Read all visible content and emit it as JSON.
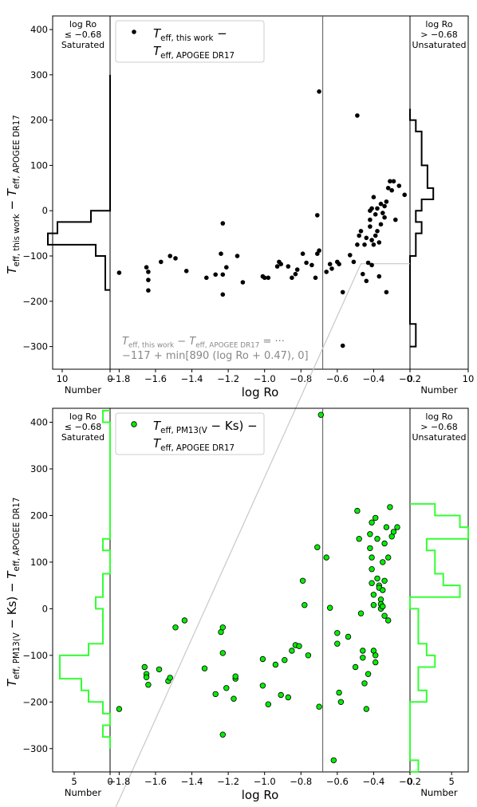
{
  "chart_data": [
    {
      "type": "scatter",
      "color": "#000000",
      "edgecolor": "#000000",
      "ylabel": "T_eff, this work − T_eff, APOGEE DR17",
      "xlabel": "log Ro",
      "legend": {
        "line1": "T_eff, this work −",
        "line2": "T_eff, APOGEE DR17",
        "placement": "top-left"
      },
      "xlim": [
        -1.85,
        -0.2
      ],
      "ylim": [
        -350,
        430
      ],
      "xticks": [
        "−1.8",
        "−1.6",
        "−1.4",
        "−1.2",
        "−1.0",
        "−0.8",
        "−0.6",
        "−0.4",
        "−0.2"
      ],
      "yticks": [
        "−300",
        "−200",
        "−100",
        "0",
        "100",
        "200",
        "300",
        "400"
      ],
      "divider_x": -0.68,
      "left_panel": {
        "title": [
          "log Ro",
          "≤ −0.68",
          "Saturated"
        ],
        "xlabel": "Number",
        "ticks": [
          "10",
          "0"
        ],
        "xmax": 12
      },
      "right_panel": {
        "title": [
          "log Ro",
          "> −0.68",
          "Unsaturated"
        ],
        "xlabel": "Number",
        "ticks": [
          "0",
          "10"
        ],
        "xmax": 10
      },
      "fit": {
        "line1": "T_eff, this work − T_eff, APOGEE DR17 = ···",
        "line2": "−117 + min[890 (log Ro + 0.47), 0]",
        "a": -117,
        "b": 890,
        "c": 0.47
      },
      "hist_left": {
        "bin_edges": [
          -175,
          -150,
          -125,
          -100,
          -75,
          -50,
          -25,
          0,
          25,
          50,
          75,
          100,
          125,
          150,
          175,
          200,
          225,
          250,
          275,
          300
        ],
        "counts": [
          1,
          1,
          1,
          3,
          13,
          11,
          4,
          0,
          0,
          0,
          0,
          0,
          0,
          0,
          0,
          0,
          0,
          0,
          0
        ]
      },
      "hist_right": {
        "bin_edges": [
          -300,
          -275,
          -250,
          -225,
          -200,
          -175,
          -150,
          -125,
          -100,
          -75,
          -50,
          -25,
          0,
          25,
          50,
          75,
          100,
          125,
          150,
          175,
          200,
          225
        ],
        "counts": [
          1,
          1,
          0,
          0,
          0,
          0,
          0,
          0,
          1,
          1,
          2,
          1,
          2,
          4,
          3,
          3,
          2,
          2,
          2,
          1,
          0
        ]
      },
      "points": [
        [
          -1.8,
          -137
        ],
        [
          -1.65,
          -125
        ],
        [
          -1.64,
          -135
        ],
        [
          -1.64,
          -153
        ],
        [
          -1.64,
          -176
        ],
        [
          -1.57,
          -113
        ],
        [
          -1.52,
          -100
        ],
        [
          -1.49,
          -105
        ],
        [
          -1.43,
          -133
        ],
        [
          -1.32,
          -148
        ],
        [
          -1.27,
          -141
        ],
        [
          -1.24,
          -95
        ],
        [
          -1.23,
          -28
        ],
        [
          -1.23,
          -141
        ],
        [
          -1.23,
          -185
        ],
        [
          -1.21,
          -125
        ],
        [
          -1.15,
          -100
        ],
        [
          -1.12,
          -158
        ],
        [
          -1.0,
          -148
        ],
        [
          -1.01,
          -145
        ],
        [
          -0.98,
          -148
        ],
        [
          -0.93,
          -123
        ],
        [
          -0.92,
          -113
        ],
        [
          -0.91,
          -118
        ],
        [
          -0.87,
          -123
        ],
        [
          -0.85,
          -148
        ],
        [
          -0.83,
          -140
        ],
        [
          -0.82,
          -130
        ],
        [
          -0.79,
          -95
        ],
        [
          -0.77,
          -115
        ],
        [
          -0.74,
          -120
        ],
        [
          -0.72,
          -148
        ],
        [
          -0.71,
          -10
        ],
        [
          -0.71,
          -95
        ],
        [
          -0.7,
          -88
        ],
        [
          -0.7,
          263
        ],
        [
          -0.66,
          -135
        ],
        [
          -0.64,
          -118
        ],
        [
          -0.63,
          -128
        ],
        [
          -0.6,
          -113
        ],
        [
          -0.59,
          -118
        ],
        [
          -0.57,
          -180
        ],
        [
          -0.57,
          -298
        ],
        [
          -0.53,
          -98
        ],
        [
          -0.51,
          -113
        ],
        [
          -0.49,
          -75
        ],
        [
          -0.49,
          210
        ],
        [
          -0.48,
          -55
        ],
        [
          -0.47,
          -45
        ],
        [
          -0.46,
          -140
        ],
        [
          -0.45,
          -75
        ],
        [
          -0.44,
          -60
        ],
        [
          -0.44,
          -155
        ],
        [
          -0.43,
          -115
        ],
        [
          -0.42,
          -35
        ],
        [
          -0.42,
          -20
        ],
        [
          -0.42,
          0
        ],
        [
          -0.41,
          5
        ],
        [
          -0.4,
          30
        ],
        [
          -0.41,
          -65
        ],
        [
          -0.41,
          -120
        ],
        [
          -0.4,
          -75
        ],
        [
          -0.39,
          -55
        ],
        [
          -0.38,
          -45
        ],
        [
          -0.37,
          -70
        ],
        [
          -0.37,
          -145
        ],
        [
          -0.36,
          -30
        ],
        [
          -0.36,
          15
        ],
        [
          -0.35,
          -5
        ],
        [
          -0.34,
          -15
        ],
        [
          -0.34,
          10
        ],
        [
          -0.33,
          20
        ],
        [
          -0.33,
          -180
        ],
        [
          -0.32,
          50
        ],
        [
          -0.31,
          65
        ],
        [
          -0.3,
          45
        ],
        [
          -0.29,
          65
        ],
        [
          -0.28,
          -20
        ],
        [
          -0.26,
          55
        ],
        [
          -0.23,
          35
        ],
        [
          -0.38,
          5
        ],
        [
          -0.39,
          -8
        ]
      ]
    },
    {
      "type": "scatter",
      "color": "#00ee00",
      "edgecolor": "#000000",
      "ylabel": "T_eff, PM13(V − Ks) − T_eff, APOGEE DR17",
      "xlabel": "log Ro",
      "legend": {
        "line1": "T_eff, PM13(V − Ks) −",
        "line2": "T_eff, APOGEE DR17",
        "placement": "top-left"
      },
      "xlim": [
        -1.85,
        -0.2
      ],
      "ylim": [
        -350,
        430
      ],
      "xticks": [
        "−1.8",
        "−1.6",
        "−1.4",
        "−1.2",
        "−1.0",
        "−0.8",
        "−0.6",
        "−0.4",
        "−0.2"
      ],
      "yticks": [
        "−300",
        "−200",
        "−100",
        "0",
        "100",
        "200",
        "300",
        "400"
      ],
      "divider_x": -0.68,
      "left_panel": {
        "title": [
          "log Ro",
          "≤ −0.68",
          "Saturated"
        ],
        "xlabel": "Number",
        "ticks": [
          "5",
          "0"
        ],
        "xmax": 8
      },
      "right_panel": {
        "title": [
          "log Ro",
          "> −0.68",
          "Unsaturated"
        ],
        "xlabel": "Number",
        "ticks": [
          "0",
          "5"
        ],
        "xmax": 7
      },
      "hist_left": {
        "bin_edges": [
          -300,
          -275,
          -250,
          -225,
          -200,
          -175,
          -150,
          -125,
          -100,
          -75,
          -50,
          -25,
          0,
          25,
          50,
          75,
          100,
          125,
          150,
          175,
          200,
          225,
          250,
          275,
          300,
          325,
          350,
          375,
          400,
          425
        ],
        "counts": [
          0,
          1,
          0,
          1,
          3,
          4,
          7,
          7,
          3,
          1,
          1,
          1,
          2,
          1,
          1,
          0,
          0,
          1,
          0,
          0,
          0,
          0,
          0,
          0,
          0,
          0,
          0,
          0,
          1
        ]
      },
      "hist_right": {
        "bin_edges": [
          -350,
          -325,
          -300,
          -275,
          -250,
          -225,
          -200,
          -175,
          -150,
          -125,
          -100,
          -75,
          -50,
          -25,
          0,
          25,
          50,
          75,
          100,
          125,
          150,
          175,
          200,
          225
        ],
        "counts": [
          1,
          0,
          0,
          0,
          0,
          0,
          2,
          1,
          1,
          3,
          2,
          1,
          1,
          1,
          0,
          6,
          4,
          3,
          3,
          2,
          7,
          6,
          3
        ]
      },
      "points": [
        [
          -1.8,
          -215
        ],
        [
          -1.66,
          -125
        ],
        [
          -1.65,
          -140
        ],
        [
          -1.65,
          -147
        ],
        [
          -1.64,
          -163
        ],
        [
          -1.58,
          -130
        ],
        [
          -1.53,
          -155
        ],
        [
          -1.52,
          -148
        ],
        [
          -1.49,
          -40
        ],
        [
          -1.44,
          -25
        ],
        [
          -1.33,
          -128
        ],
        [
          -1.27,
          -183
        ],
        [
          -1.24,
          -50
        ],
        [
          -1.23,
          -40
        ],
        [
          -1.23,
          -95
        ],
        [
          -1.23,
          -270
        ],
        [
          -1.21,
          -170
        ],
        [
          -1.17,
          -193
        ],
        [
          -1.16,
          -150
        ],
        [
          -1.16,
          -145
        ],
        [
          -1.01,
          -108
        ],
        [
          -1.01,
          -165
        ],
        [
          -0.98,
          -205
        ],
        [
          -0.94,
          -120
        ],
        [
          -0.91,
          -185
        ],
        [
          -0.89,
          -110
        ],
        [
          -0.87,
          -190
        ],
        [
          -0.85,
          -90
        ],
        [
          -0.83,
          -78
        ],
        [
          -0.81,
          -80
        ],
        [
          -0.79,
          60
        ],
        [
          -0.78,
          8
        ],
        [
          -0.76,
          -100
        ],
        [
          -0.71,
          132
        ],
        [
          -0.7,
          -210
        ],
        [
          -0.69,
          416
        ],
        [
          -0.66,
          110
        ],
        [
          -0.64,
          2
        ],
        [
          -0.62,
          -325
        ],
        [
          -0.6,
          -52
        ],
        [
          -0.6,
          -75
        ],
        [
          -0.59,
          -180
        ],
        [
          -0.58,
          -200
        ],
        [
          -0.54,
          -60
        ],
        [
          -0.5,
          -125
        ],
        [
          -0.49,
          210
        ],
        [
          -0.48,
          150
        ],
        [
          -0.47,
          -10
        ],
        [
          -0.46,
          -90
        ],
        [
          -0.46,
          -105
        ],
        [
          -0.45,
          -160
        ],
        [
          -0.44,
          -215
        ],
        [
          -0.43,
          -140
        ],
        [
          -0.42,
          130
        ],
        [
          -0.42,
          160
        ],
        [
          -0.41,
          185
        ],
        [
          -0.41,
          110
        ],
        [
          -0.41,
          85
        ],
        [
          -0.41,
          55
        ],
        [
          -0.4,
          30
        ],
        [
          -0.4,
          8
        ],
        [
          -0.4,
          -90
        ],
        [
          -0.39,
          -100
        ],
        [
          -0.39,
          -115
        ],
        [
          -0.39,
          195
        ],
        [
          -0.38,
          150
        ],
        [
          -0.38,
          65
        ],
        [
          -0.37,
          50
        ],
        [
          -0.37,
          45
        ],
        [
          -0.36,
          20
        ],
        [
          -0.36,
          10
        ],
        [
          -0.36,
          0
        ],
        [
          -0.35,
          100
        ],
        [
          -0.35,
          40
        ],
        [
          -0.35,
          5
        ],
        [
          -0.34,
          140
        ],
        [
          -0.34,
          60
        ],
        [
          -0.34,
          -15
        ],
        [
          -0.33,
          175
        ],
        [
          -0.32,
          110
        ],
        [
          -0.32,
          -25
        ],
        [
          -0.31,
          218
        ],
        [
          -0.3,
          155
        ],
        [
          -0.29,
          165
        ],
        [
          -0.27,
          175
        ]
      ]
    }
  ]
}
